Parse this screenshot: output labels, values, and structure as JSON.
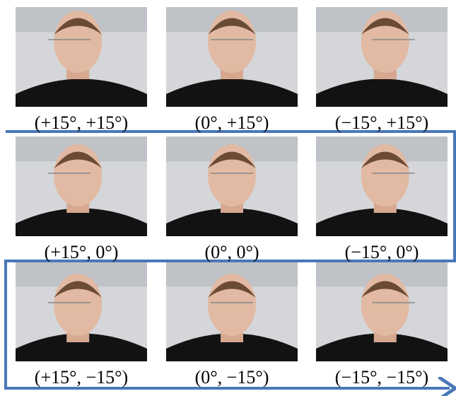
{
  "figure": {
    "labels": [
      [
        "(+15°, +15°)",
        "(0°, +15°)",
        "(−15°, +15°)"
      ],
      [
        "(+15°, 0°)",
        "(0°, 0°)",
        "(−15°, 0°)"
      ],
      [
        "(+15°, −15°)",
        "(0°, −15°)",
        "(−15°, −15°)"
      ]
    ]
  }
}
